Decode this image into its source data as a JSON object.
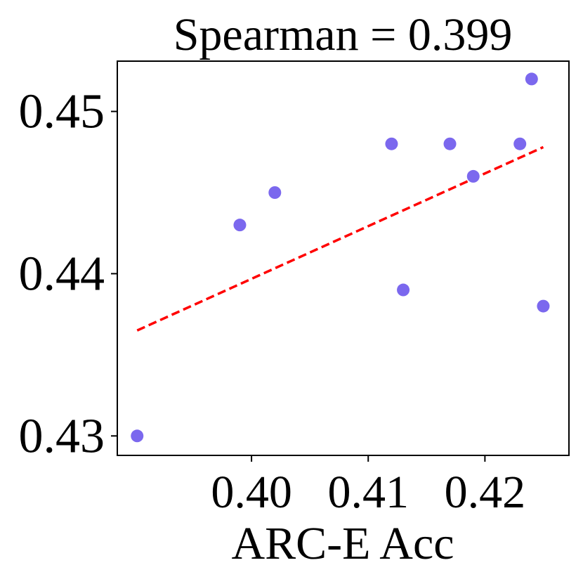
{
  "chart_data": {
    "type": "scatter",
    "title": "Spearman = 0.399",
    "xlabel": "ARC-E Acc",
    "ylabel": "",
    "xlim": [
      0.3885,
      0.4272
    ],
    "ylim": [
      0.4288,
      0.4531
    ],
    "xticks": [
      {
        "value": 0.4,
        "label": "0.40"
      },
      {
        "value": 0.41,
        "label": "0.41"
      },
      {
        "value": 0.42,
        "label": "0.42"
      }
    ],
    "yticks": [
      {
        "value": 0.43,
        "label": "0.43"
      },
      {
        "value": 0.44,
        "label": "0.44"
      },
      {
        "value": 0.45,
        "label": "0.45"
      }
    ],
    "grid": false,
    "legend": "none",
    "points": [
      {
        "x": 0.3902,
        "y": 0.43
      },
      {
        "x": 0.399,
        "y": 0.443
      },
      {
        "x": 0.402,
        "y": 0.445
      },
      {
        "x": 0.412,
        "y": 0.448
      },
      {
        "x": 0.413,
        "y": 0.439
      },
      {
        "x": 0.417,
        "y": 0.448
      },
      {
        "x": 0.419,
        "y": 0.446
      },
      {
        "x": 0.423,
        "y": 0.448
      },
      {
        "x": 0.424,
        "y": 0.452
      },
      {
        "x": 0.425,
        "y": 0.438
      }
    ],
    "trendline": {
      "x": [
        0.3902,
        0.425
      ],
      "y": [
        0.4365,
        0.4478
      ]
    },
    "colors": {
      "points": "#7B68EE",
      "trendline": "#FF0000",
      "axes": "#000000"
    }
  }
}
